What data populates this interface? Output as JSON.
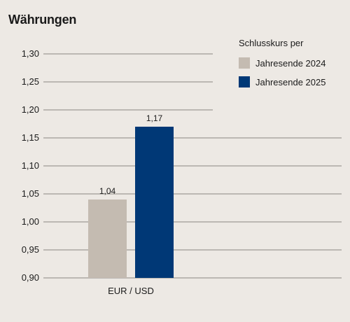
{
  "chart_data": {
    "type": "bar",
    "title": "Währungen",
    "categories": [
      "EUR / USD"
    ],
    "series": [
      {
        "name": "Jahresende 2024",
        "values": [
          1.04
        ],
        "labels": [
          "1,04"
        ],
        "color": "#c4bbb1"
      },
      {
        "name": "Jahresende 2025",
        "values": [
          1.17
        ],
        "labels": [
          "1,17"
        ],
        "color": "#003876"
      }
    ],
    "ylim": [
      0.9,
      1.3
    ],
    "yticks": [
      1.3,
      1.25,
      1.2,
      1.15,
      1.1,
      1.05,
      1.0,
      0.95,
      0.9
    ],
    "ytick_labels": [
      "1,30",
      "1,25",
      "1,20",
      "1,15",
      "1,10",
      "1,05",
      "1,00",
      "0,95",
      "0,90"
    ],
    "grid": true,
    "legend": {
      "title": "Schlusskurs per",
      "position": "top-right"
    },
    "xlabel": "",
    "ylabel": ""
  }
}
